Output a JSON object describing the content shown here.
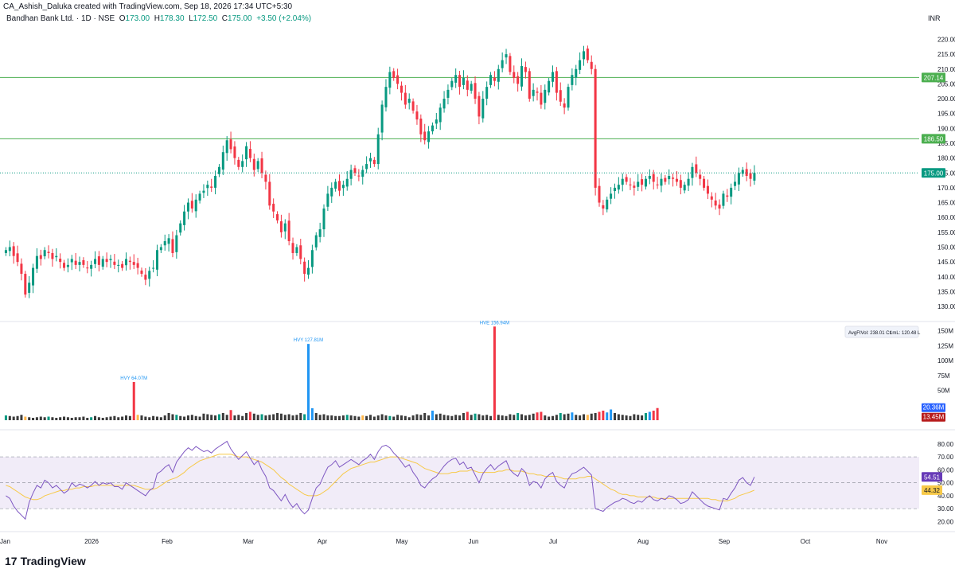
{
  "header": {
    "attribution": "CA_Ashish_Daluka created with TradingView.com, Sep 18, 2026 17:34 UTC+5:30",
    "symbol": "Bandhan Bank Ltd. · 1D · NSE",
    "open_label": "O",
    "open": "173.00",
    "high_label": "H",
    "high": "178.30",
    "low_label": "L",
    "low": "172.50",
    "close_label": "C",
    "close": "175.00",
    "change": "+3.50 (+2.04%)",
    "currency": "INR"
  },
  "footer": {
    "brand": "TradingView",
    "logo_glyph": "17"
  },
  "volume_panel": {
    "avg_label": "AvgFtVol: 238.01 Cr",
    "lot_label": "1mL: 120.48 L",
    "hvy_labels": [
      {
        "text": "HVY 64.07M",
        "value": 64.07
      },
      {
        "text": "HVY 127.81M",
        "value": 127.81
      },
      {
        "text": "HVE 156.94M",
        "value": 156.94
      }
    ],
    "badge_volume": "20.36M",
    "badge_avg": "13.45M",
    "badge_volume_value": 20.36,
    "badge_avg_value": 13.45
  },
  "rsi_panel": {
    "badge_rsi": "54.51",
    "badge_ma": "44.32",
    "badge_rsi_value": 54.51,
    "badge_ma_value": 44.32,
    "upper_band": 70,
    "mid_band": 50,
    "lower_band": 30
  },
  "colors": {
    "up": "#089981",
    "down": "#f23645",
    "vol_blue": "#2196f3",
    "vol_dark": "#3b3b3b",
    "vol_orange": "#ffb74d",
    "rsi_line": "#7e57c2",
    "rsi_ma": "#f7c948",
    "rsi_band_fill": "#ede7f6",
    "hline": "#4caf50",
    "badge_green": "#4caf50",
    "badge_blue": "#2962ff",
    "badge_red": "#b71c1c",
    "badge_yellow": "#f7c948",
    "badge_purple": "#673ab7"
  },
  "chart_data": [
    {
      "type": "candlestick",
      "title": "Bandhan Bank Ltd. · 1D · NSE",
      "ylim": [
        126,
        222
      ],
      "y_ticks": [
        "130.00",
        "135.00",
        "140.00",
        "145.00",
        "150.00",
        "155.00",
        "160.00",
        "165.00",
        "170.00",
        "175.00",
        "180.00",
        "185.00",
        "190.00",
        "195.00",
        "200.00",
        "205.00",
        "210.00",
        "215.00",
        "220.00"
      ],
      "y_tick_values": [
        130,
        135,
        140,
        145,
        150,
        155,
        160,
        165,
        170,
        175,
        180,
        185,
        190,
        195,
        200,
        205,
        210,
        215,
        220
      ],
      "x_labels": [
        "Jan",
        "2026",
        "Feb",
        "Mar",
        "Apr",
        "May",
        "Jun",
        "Jul",
        "Aug",
        "Sep",
        "Oct",
        "Nov"
      ],
      "horizontal_lines": [
        {
          "value": 207.14,
          "label": "207.14"
        },
        {
          "value": 186.5,
          "label": "186.50"
        }
      ],
      "last_price": {
        "value": 175.0,
        "label": "175.00"
      },
      "close": [
        149,
        150,
        147,
        145,
        141,
        134,
        138,
        143,
        147,
        146,
        149,
        148,
        146,
        147,
        145,
        143,
        144,
        146,
        144,
        145,
        144,
        143,
        144,
        146,
        144,
        146,
        145,
        146,
        144,
        144,
        143,
        146,
        145,
        144,
        143,
        141,
        139,
        142,
        143,
        149,
        150,
        152,
        153,
        148,
        154,
        158,
        162,
        165,
        163,
        166,
        168,
        169,
        171,
        170,
        174,
        177,
        182,
        186,
        183,
        180,
        177,
        179,
        184,
        180,
        176,
        179,
        175,
        172,
        164,
        162,
        159,
        155,
        158,
        152,
        148,
        150,
        146,
        141,
        143,
        149,
        154,
        156,
        163,
        168,
        170,
        172,
        169,
        171,
        173,
        176,
        175,
        174,
        176,
        178,
        180,
        178,
        188,
        198,
        204,
        209,
        207,
        205,
        202,
        198,
        200,
        196,
        193,
        188,
        186,
        189,
        191,
        193,
        197,
        200,
        203,
        206,
        208,
        204,
        207,
        203,
        205,
        200,
        194,
        200,
        204,
        208,
        206,
        210,
        213,
        215,
        209,
        207,
        205,
        211,
        209,
        200,
        203,
        202,
        198,
        203,
        206,
        209,
        202,
        199,
        197,
        204,
        208,
        210,
        213,
        216,
        213,
        210,
        170,
        165,
        163,
        166,
        168,
        170,
        171,
        173,
        172,
        171,
        170,
        172,
        171,
        173,
        174,
        172,
        171,
        173,
        172,
        174,
        173,
        172,
        170,
        171,
        173,
        177,
        175,
        173,
        170,
        168,
        166,
        164,
        163,
        168,
        167,
        170,
        172,
        175,
        176,
        174,
        173,
        175
      ],
      "panels": "price, volume, rsi"
    },
    {
      "type": "bar",
      "title": "Volume",
      "ylim": [
        0,
        160
      ],
      "y_ticks": [
        "50M",
        "75M",
        "100M",
        "125M",
        "150M"
      ],
      "y_tick_values": [
        50,
        75,
        100,
        125,
        150
      ],
      "values": [
        8,
        7,
        6,
        7,
        9,
        6,
        5,
        4,
        5,
        6,
        5,
        6,
        5,
        4,
        5,
        6,
        5,
        4,
        5,
        5,
        6,
        4,
        5,
        7,
        5,
        4,
        5,
        6,
        7,
        5,
        6,
        8,
        7,
        64.07,
        9,
        8,
        6,
        5,
        7,
        6,
        5,
        8,
        12,
        10,
        9,
        7,
        6,
        8,
        9,
        7,
        6,
        11,
        10,
        9,
        8,
        10,
        12,
        9,
        17,
        8,
        9,
        7,
        12,
        14,
        11,
        9,
        10,
        8,
        9,
        10,
        12,
        11,
        9,
        10,
        8,
        9,
        12,
        10,
        127.81,
        20,
        12,
        9,
        10,
        8,
        8,
        7,
        7,
        8,
        9,
        8,
        7,
        6,
        8,
        7,
        9,
        6,
        8,
        10,
        8,
        7,
        6,
        9,
        8,
        7,
        5,
        8,
        10,
        9,
        12,
        8,
        16,
        10,
        11,
        9,
        8,
        7,
        9,
        8,
        12,
        14,
        9,
        11,
        10,
        8,
        9,
        7,
        156.94,
        9,
        8,
        7,
        10,
        9,
        12,
        10,
        8,
        9,
        11,
        13,
        14,
        8,
        6,
        7,
        9,
        12,
        10,
        11,
        13,
        9,
        8,
        10,
        9,
        11,
        12,
        14,
        16,
        13,
        18,
        12,
        10,
        9,
        8,
        7,
        10,
        9,
        8,
        12,
        14,
        16,
        20.36
      ],
      "ma": 13.45
    },
    {
      "type": "line",
      "title": "RSI",
      "ylim": [
        16,
        86
      ],
      "y_ticks": [
        "20.00",
        "30.00",
        "40.00",
        "50.00",
        "60.00",
        "70.00",
        "80.00"
      ],
      "y_tick_values": [
        20,
        30,
        40,
        50,
        60,
        70,
        80
      ],
      "series": [
        {
          "values": [
            40,
            38,
            32,
            28,
            25,
            22,
            35,
            42,
            48,
            46,
            52,
            50,
            46,
            48,
            45,
            42,
            44,
            50,
            47,
            49,
            48,
            46,
            48,
            51,
            48,
            50,
            49,
            50,
            47,
            47,
            45,
            50,
            48,
            46,
            44,
            42,
            40,
            44,
            46,
            57,
            59,
            62,
            64,
            58,
            66,
            70,
            74,
            77,
            75,
            78,
            76,
            74,
            75,
            73,
            76,
            78,
            80,
            82,
            76,
            72,
            68,
            71,
            74,
            69,
            64,
            67,
            60,
            55,
            46,
            44,
            40,
            36,
            41,
            35,
            31,
            34,
            29,
            26,
            29,
            38,
            46,
            49,
            56,
            62,
            64,
            67,
            62,
            64,
            66,
            68,
            66,
            64,
            67,
            69,
            72,
            68,
            74,
            78,
            79,
            77,
            73,
            70,
            66,
            62,
            64,
            58,
            54,
            48,
            46,
            50,
            53,
            55,
            59,
            63,
            66,
            68,
            69,
            64,
            66,
            61,
            62,
            56,
            50,
            57,
            61,
            64,
            60,
            63,
            65,
            67,
            60,
            57,
            55,
            61,
            58,
            48,
            51,
            50,
            46,
            53,
            56,
            58,
            51,
            48,
            46,
            53,
            57,
            58,
            60,
            62,
            59,
            56,
            30,
            29,
            28,
            31,
            33,
            35,
            36,
            38,
            37,
            35,
            34,
            36,
            35,
            38,
            40,
            37,
            36,
            38,
            37,
            40,
            39,
            37,
            34,
            35,
            37,
            43,
            40,
            37,
            34,
            32,
            31,
            30,
            29,
            38,
            37,
            42,
            46,
            52,
            54,
            50,
            48,
            54.51
          ]
        },
        {
          "values": [
            48,
            47,
            45,
            43,
            41,
            39,
            38,
            37,
            37,
            38,
            40,
            41,
            42,
            43,
            44,
            44,
            45,
            45,
            46,
            46,
            47,
            47,
            47,
            48,
            48,
            48,
            48,
            48,
            48,
            48,
            48,
            48,
            48,
            48,
            47,
            46,
            45,
            45,
            45,
            46,
            48,
            50,
            52,
            53,
            54,
            56,
            58,
            61,
            63,
            65,
            67,
            68,
            69,
            70,
            71,
            72,
            72,
            72,
            72,
            71,
            70,
            70,
            70,
            69,
            68,
            67,
            66,
            64,
            62,
            60,
            57,
            54,
            52,
            49,
            47,
            45,
            43,
            41,
            40,
            40,
            40,
            41,
            43,
            45,
            48,
            51,
            54,
            57,
            59,
            61,
            62,
            63,
            64,
            65,
            66,
            66,
            67,
            68,
            69,
            70,
            70,
            70,
            69,
            68,
            67,
            66,
            65,
            63,
            61,
            60,
            59,
            58,
            57,
            57,
            57,
            58,
            58,
            59,
            59,
            59,
            60,
            59,
            58,
            58,
            58,
            58,
            58,
            59,
            59,
            60,
            60,
            59,
            59,
            59,
            58,
            57,
            57,
            56,
            56,
            55,
            55,
            55,
            55,
            54,
            53,
            53,
            53,
            53,
            54,
            54,
            55,
            55,
            53,
            51,
            49,
            47,
            45,
            44,
            42,
            41,
            41,
            40,
            40,
            39,
            39,
            39,
            39,
            39,
            38,
            38,
            38,
            38,
            38,
            38,
            38,
            38,
            38,
            38,
            38,
            38,
            38,
            38,
            37,
            37,
            36,
            36,
            36,
            37,
            38,
            40,
            41,
            42,
            43,
            44.32
          ]
        }
      ]
    }
  ]
}
